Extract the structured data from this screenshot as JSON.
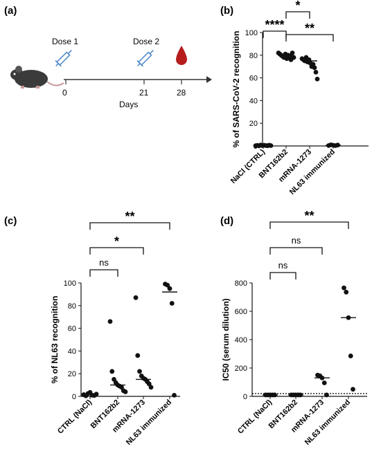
{
  "timeline": {
    "panel_label": "(a)",
    "dose1": "Dose 1",
    "dose2": "Dose 2",
    "days": [
      "0",
      "21",
      "28"
    ],
    "axis_label": "Days",
    "colors": {
      "mouse": "#3b3b3b",
      "syringe": "#4a86c8",
      "drop": "#b71c1c"
    }
  },
  "chart_data": [
    {
      "id": "b",
      "type": "scatter",
      "panel_label": "(b)",
      "ylabel": "% of SARS-CoV-2 recognition",
      "ylim": [
        0,
        100
      ],
      "yticks": [
        "0",
        "20",
        "40",
        "60",
        "80",
        "100"
      ],
      "categories": [
        "NaCl (CTRL)",
        "BNT162b2",
        "mRNA-1273",
        "NL63 immunized"
      ],
      "points": [
        [
          0.2,
          0.5,
          0.1,
          0.8,
          0.3,
          0.6,
          0.4,
          0.2,
          0.7,
          0.3
        ],
        [
          82,
          81,
          80,
          79,
          78,
          81,
          77,
          80,
          79,
          76,
          82,
          78
        ],
        [
          77,
          76,
          75,
          78,
          74,
          76,
          73,
          70,
          72,
          69,
          65,
          59
        ],
        [
          0.4,
          1.0,
          0.6,
          0.3,
          0.8
        ]
      ],
      "medians": [
        0.35,
        80,
        75,
        0.6
      ],
      "significance": [
        {
          "from": 0,
          "to": 1,
          "label": "****"
        },
        {
          "from": 1,
          "to": 3,
          "label": "**"
        },
        {
          "from": 1,
          "to": 2,
          "label": "*"
        }
      ]
    },
    {
      "id": "c",
      "type": "scatter",
      "panel_label": "(c)",
      "ylabel": "% of NL63 recognition",
      "ylim": [
        0,
        100
      ],
      "yticks": [
        "0",
        "20",
        "40",
        "60",
        "80",
        "100"
      ],
      "categories": [
        "CTRL (NaCl)",
        "BNT162b2",
        "mRNA-1273",
        "NL63 immunized"
      ],
      "points": [
        [
          1.5,
          0.5,
          2.5,
          3.5,
          1.0,
          0.8,
          2.0
        ],
        [
          66,
          22,
          15,
          12,
          10,
          9,
          8,
          5,
          4
        ],
        [
          87,
          36,
          22,
          18,
          16,
          15,
          13,
          11,
          8
        ],
        [
          99,
          98,
          95,
          82,
          1
        ]
      ],
      "medians": [
        1.5,
        10,
        15,
        92
      ],
      "significance": [
        {
          "from": 0,
          "to": 1,
          "label": "ns"
        },
        {
          "from": 0,
          "to": 2,
          "label": "*"
        },
        {
          "from": 0,
          "to": 3,
          "label": "**"
        }
      ]
    },
    {
      "id": "d",
      "type": "scatter",
      "panel_label": "(d)",
      "ylabel": "IC50 (serum dilution)",
      "ylim": [
        0,
        800
      ],
      "yticks": [
        "0",
        "200",
        "400",
        "600",
        "800"
      ],
      "categories": [
        "CTRL (NaCl)",
        "BNT162b2",
        "mRNA-1273",
        "NL63 immunized"
      ],
      "points": [
        [
          10,
          10,
          10,
          10,
          10
        ],
        [
          10,
          10,
          10,
          10,
          10
        ],
        [
          150,
          145,
          130,
          95,
          10
        ],
        [
          765,
          735,
          555,
          285,
          50
        ]
      ],
      "medians": [
        10,
        10,
        130,
        555
      ],
      "dotted_baseline": 20,
      "significance": [
        {
          "from": 0,
          "to": 1,
          "label": "ns"
        },
        {
          "from": 0,
          "to": 2,
          "label": "ns"
        },
        {
          "from": 0,
          "to": 3,
          "label": "**"
        }
      ]
    }
  ]
}
